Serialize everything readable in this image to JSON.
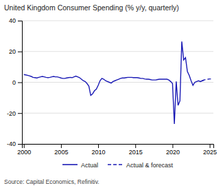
{
  "chart_data": {
    "type": "line",
    "title": "United Kingdom Consumer Spending (% y/y, quarterly)",
    "source": "Source: Capital Economics, Refinitiv.",
    "xlim": [
      1999.75,
      2025.5
    ],
    "ylim": [
      -40,
      40
    ],
    "xticks": [
      2000,
      2005,
      2010,
      2015,
      2020,
      2025
    ],
    "yticks": [
      -40,
      -20,
      0,
      20,
      40
    ],
    "grid": true,
    "legend": "bottom",
    "series": [
      {
        "name": "Actual",
        "color": "#1a1ab5",
        "line_style": "solid",
        "x": [
          2000.0,
          2000.25,
          2000.5,
          2000.75,
          2001.0,
          2001.25,
          2001.5,
          2001.75,
          2002.0,
          2002.25,
          2002.5,
          2002.75,
          2003.0,
          2003.25,
          2003.5,
          2003.75,
          2004.0,
          2004.25,
          2004.5,
          2004.75,
          2005.0,
          2005.25,
          2005.5,
          2005.75,
          2006.0,
          2006.25,
          2006.5,
          2006.75,
          2007.0,
          2007.25,
          2007.5,
          2007.75,
          2008.0,
          2008.25,
          2008.5,
          2008.75,
          2009.0,
          2009.25,
          2009.5,
          2009.75,
          2010.0,
          2010.25,
          2010.5,
          2010.75,
          2011.0,
          2011.25,
          2011.5,
          2011.75,
          2012.0,
          2012.25,
          2012.5,
          2012.75,
          2013.0,
          2013.25,
          2013.5,
          2013.75,
          2014.0,
          2014.25,
          2014.5,
          2014.75,
          2015.0,
          2015.25,
          2015.5,
          2015.75,
          2016.0,
          2016.25,
          2016.5,
          2016.75,
          2017.0,
          2017.25,
          2017.5,
          2017.75,
          2018.0,
          2018.25,
          2018.5,
          2018.75,
          2019.0,
          2019.25,
          2019.5,
          2019.75,
          2020.0,
          2020.25,
          2020.5,
          2020.75,
          2021.0,
          2021.25,
          2021.5,
          2021.75,
          2022.0,
          2022.25,
          2022.5,
          2022.75,
          2023.0,
          2023.25,
          2023.5,
          2023.75,
          2024.0,
          2024.25
        ],
        "values": [
          5.0,
          4.8,
          4.5,
          4.2,
          3.8,
          3.2,
          3.0,
          2.8,
          3.2,
          3.5,
          3.8,
          3.5,
          3.2,
          3.0,
          3.2,
          3.5,
          3.8,
          3.5,
          3.5,
          3.2,
          2.8,
          2.5,
          2.5,
          2.8,
          3.0,
          3.2,
          3.0,
          3.5,
          4.0,
          3.5,
          3.0,
          2.0,
          1.0,
          0.5,
          -0.8,
          -2.5,
          -8.5,
          -7.5,
          -5.5,
          -4.5,
          -2.0,
          1.0,
          2.5,
          2.0,
          1.0,
          0.5,
          0.0,
          -0.5,
          0.5,
          1.0,
          1.5,
          2.0,
          2.5,
          2.8,
          2.8,
          3.0,
          3.2,
          3.2,
          3.2,
          3.0,
          3.0,
          3.0,
          2.8,
          2.5,
          2.5,
          2.2,
          2.0,
          2.0,
          1.8,
          1.5,
          1.5,
          1.5,
          1.8,
          2.0,
          2.0,
          2.0,
          2.0,
          2.0,
          1.5,
          0.5,
          -0.8,
          -27.0,
          0.5,
          -15.0,
          -12.0,
          26.5,
          14.5,
          16.0,
          7.0,
          4.5,
          1.0,
          -2.0,
          0.0,
          0.5,
          1.0,
          0.5,
          1.0,
          1.5
        ]
      },
      {
        "name": "Actual & forecast",
        "color": "#1a1ab5",
        "line_style": "dashed",
        "x": [
          2024.0,
          2024.25,
          2024.5,
          2024.75,
          2025.0,
          2025.25
        ],
        "values": [
          1.0,
          1.5,
          1.8,
          2.0,
          2.2,
          2.2
        ]
      }
    ]
  }
}
